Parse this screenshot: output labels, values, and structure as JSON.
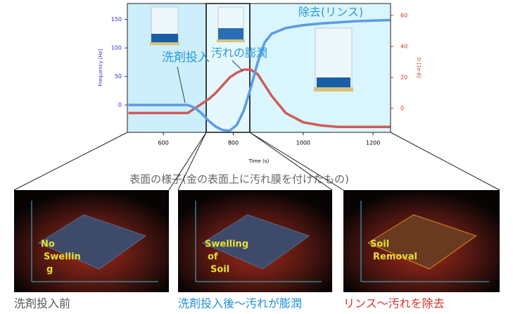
{
  "chart_data": {
    "type": "line",
    "x_label": "Time (s)",
    "y_label": "Frequency [Hz]",
    "y2_label": "D [1e-6]",
    "x": [
      500,
      550,
      600,
      650,
      670,
      690,
      710,
      730,
      750,
      770,
      790,
      810,
      830,
      850,
      870,
      890,
      910,
      950,
      1000,
      1050,
      1100,
      1150,
      1200,
      1250
    ],
    "series": [
      {
        "name": "Frequency",
        "color": "#5b9be6",
        "values": [
          0,
          0,
          0,
          0,
          0,
          -5,
          -15,
          -28,
          -38,
          -44,
          -45,
          -35,
          -10,
          30,
          75,
          110,
          125,
          135,
          140,
          143,
          145,
          147,
          148,
          149
        ]
      },
      {
        "name": "D",
        "color": "#d05a5a",
        "axis": "y2",
        "values": [
          -3,
          -3,
          -3,
          -3,
          -3,
          0,
          3,
          6,
          10,
          15,
          20,
          23,
          25,
          25,
          22,
          15,
          8,
          -3,
          -9,
          -11,
          -12,
          -12,
          -12,
          -12
        ]
      }
    ],
    "xlim": [
      497,
      1250
    ],
    "xticks": [
      600,
      800,
      1000,
      1200
    ],
    "ylim": [
      -48,
      178
    ],
    "yticks": [
      0,
      50,
      100,
      150
    ],
    "y2lim": [
      -15.5,
      67.7
    ],
    "y2ticks": [
      0,
      20,
      40,
      60
    ],
    "annotations": [
      "洗剤投入",
      "汚れの膨潤",
      "除去(リンス)"
    ],
    "subtitle": "表面の様子(金の表面上に汚れ膜を付けたもの)",
    "panels": [
      {
        "label": "No Swellin g",
        "caption": "洗剤投入前"
      },
      {
        "label": "Swelling of Soil",
        "caption": "洗剤投入後～汚れが膨潤"
      },
      {
        "label": "Soil Removal",
        "caption": "リンス～汚れを除去"
      }
    ]
  }
}
